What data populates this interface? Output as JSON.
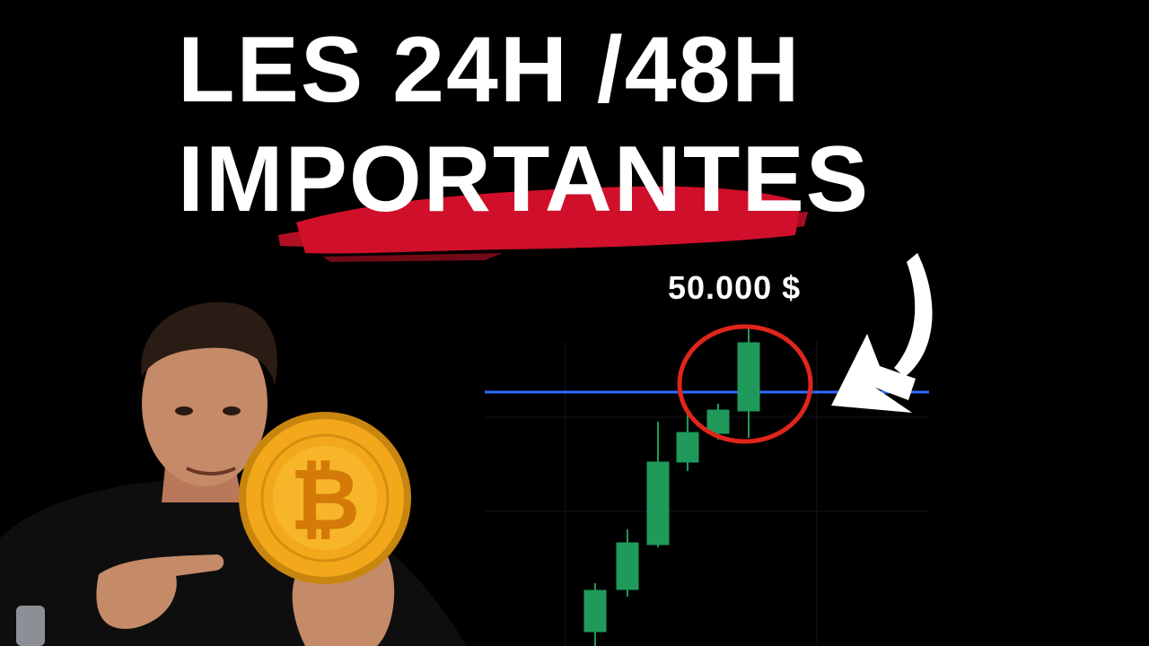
{
  "headline": {
    "line1": "LES 24H /48H",
    "line2": "IMPORTANTES"
  },
  "price_annotation": "50.000 $",
  "colors": {
    "background": "#000000",
    "text": "#ffffff",
    "brush_stroke": "#d0102a",
    "candle_up": "#1f9a5a",
    "level_line": "#2f6bff",
    "highlight_circle": "#e0261b",
    "arrow": "#ffffff",
    "coin_gold": "#f2a81a"
  },
  "icons": [
    "bitcoin-coin-icon",
    "pointing-arrow-icon",
    "highlight-circle-icon"
  ]
}
